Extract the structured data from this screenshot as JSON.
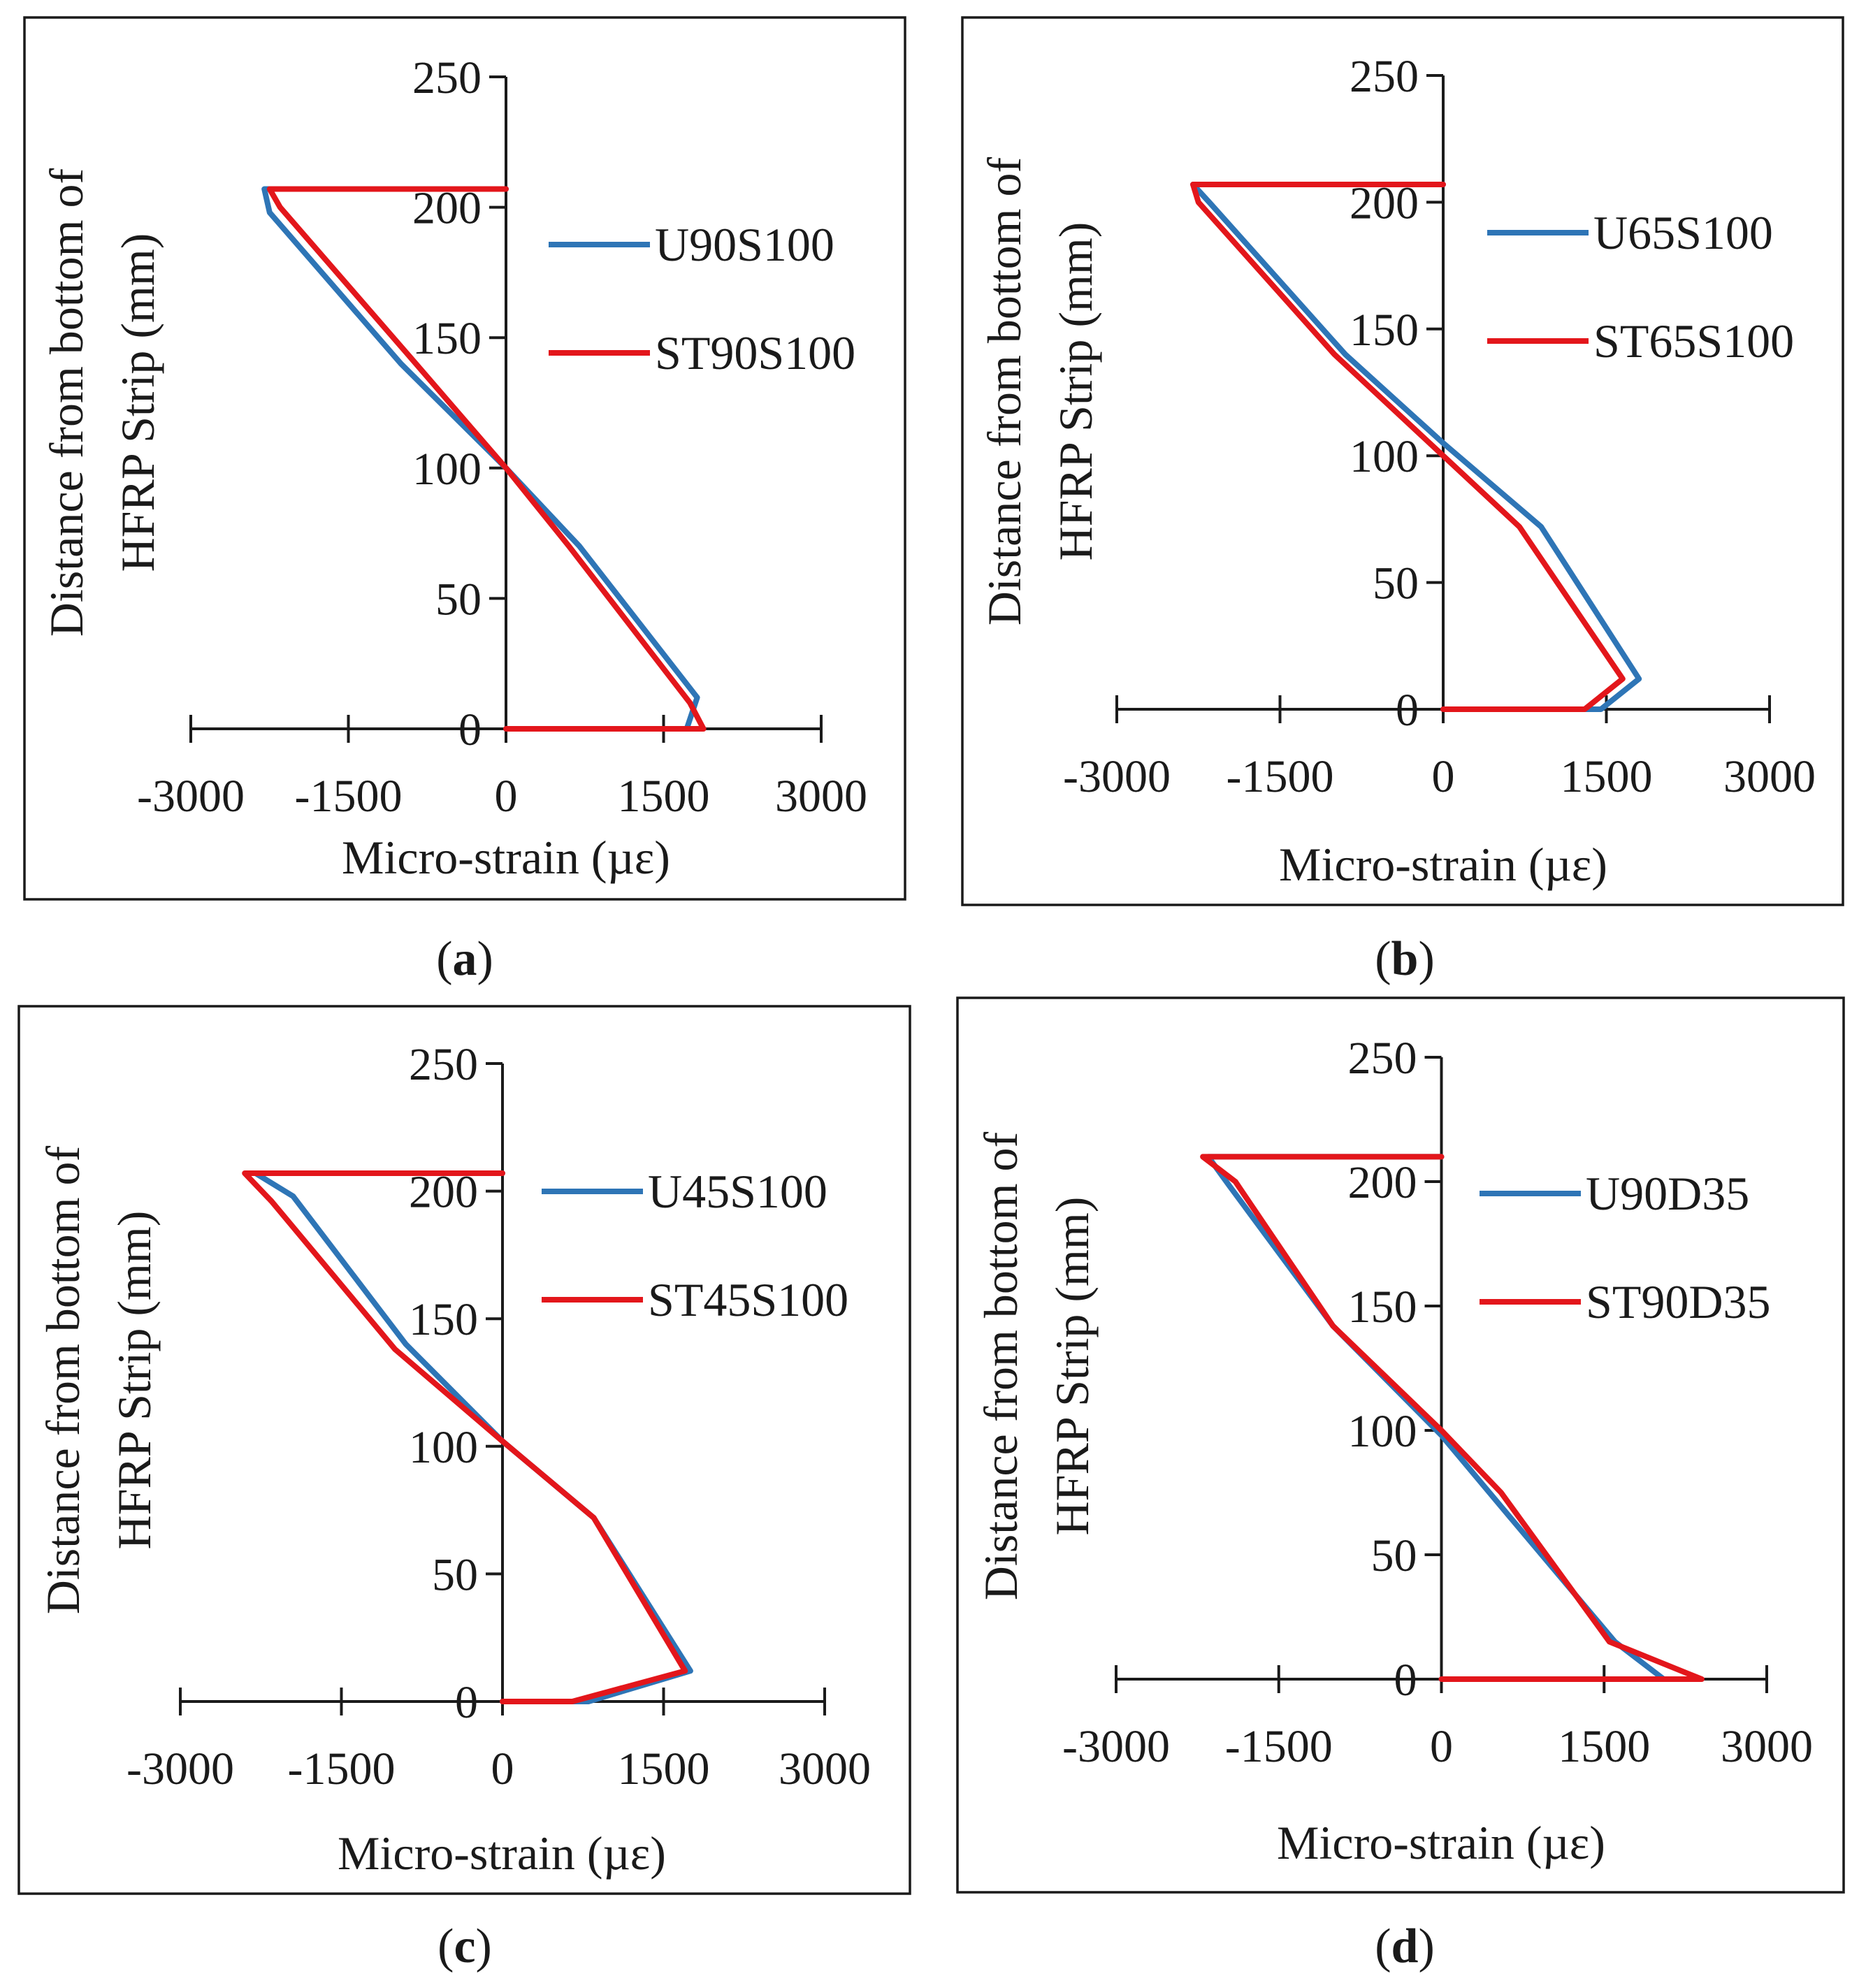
{
  "colors": {
    "blue": "#2E75B6",
    "red": "#E3161B",
    "axis": "#1a1a1a"
  },
  "chart_data": [
    {
      "type": "line",
      "panel": "a",
      "caption_letter": "a",
      "xlabel": "Micro-strain (µε)",
      "ylabel_lines": [
        "Distance from bottom of",
        "HFRP Strip (mm)"
      ],
      "xlim": [
        -3000,
        3000
      ],
      "ylim": [
        0,
        250
      ],
      "xticks": [
        -3000,
        -1500,
        0,
        1500,
        3000
      ],
      "xtick_labels": [
        "-3000",
        "-1500",
        "0",
        "1500",
        "3000"
      ],
      "yticks": [
        0,
        50,
        100,
        150,
        200,
        250
      ],
      "ytick_labels": [
        "0",
        "50",
        "100",
        "150",
        "200",
        "250"
      ],
      "legend": "right",
      "series": [
        {
          "name": "U90S100",
          "color": "#2E75B6",
          "x": [
            0,
            1720,
            1820,
            700,
            0,
            -1000,
            -2250,
            -2300,
            0
          ],
          "y": [
            0,
            0,
            12,
            70,
            100,
            140,
            198,
            207,
            207
          ]
        },
        {
          "name": "ST90S100",
          "color": "#E3161B",
          "x": [
            0,
            1880,
            1750,
            600,
            0,
            -900,
            -2150,
            -2250,
            0
          ],
          "y": [
            0,
            0,
            10,
            70,
            100,
            142,
            200,
            207,
            207
          ]
        }
      ]
    },
    {
      "type": "line",
      "panel": "b",
      "caption_letter": "b",
      "xlabel": "Micro-strain (µε)",
      "ylabel_lines": [
        "Distance from bottom of",
        "HFRP Strip (mm)"
      ],
      "xlim": [
        -3000,
        3000
      ],
      "ylim": [
        0,
        250
      ],
      "xticks": [
        -3000,
        -1500,
        0,
        1500,
        3000
      ],
      "xtick_labels": [
        "-3000",
        "-1500",
        "0",
        "1500",
        "3000"
      ],
      "yticks": [
        0,
        50,
        100,
        150,
        200,
        250
      ],
      "ytick_labels": [
        "0",
        "50",
        "100",
        "150",
        "200",
        "250"
      ],
      "legend": "right",
      "series": [
        {
          "name": "U65S100",
          "color": "#2E75B6",
          "x": [
            0,
            1450,
            1800,
            900,
            0,
            -900,
            -2150,
            -2300,
            0
          ],
          "y": [
            0,
            0,
            12,
            72,
            105,
            140,
            200,
            207,
            207
          ]
        },
        {
          "name": "ST65S100",
          "color": "#E3161B",
          "x": [
            0,
            1300,
            1650,
            700,
            0,
            -1000,
            -2250,
            -2300,
            0
          ],
          "y": [
            0,
            0,
            12,
            72,
            100,
            140,
            200,
            207,
            207
          ]
        }
      ]
    },
    {
      "type": "line",
      "panel": "c",
      "caption_letter": "c",
      "xlabel": "Micro-strain (µε)",
      "ylabel_lines": [
        "Distance from bottom of",
        "HFRP Strip (mm)"
      ],
      "xlim": [
        -3000,
        3000
      ],
      "ylim": [
        0,
        250
      ],
      "xticks": [
        -3000,
        -1500,
        0,
        1500,
        3000
      ],
      "xtick_labels": [
        "-3000",
        "-1500",
        "0",
        "1500",
        "3000"
      ],
      "yticks": [
        0,
        50,
        100,
        150,
        200,
        250
      ],
      "ytick_labels": [
        "0",
        "50",
        "100",
        "150",
        "200",
        "250"
      ],
      "legend": "right",
      "series": [
        {
          "name": "U45S100",
          "color": "#2E75B6",
          "x": [
            0,
            800,
            1750,
            850,
            0,
            -900,
            -1950,
            -2300,
            0
          ],
          "y": [
            0,
            0,
            12,
            72,
            102,
            140,
            198,
            207,
            207
          ]
        },
        {
          "name": "ST45S100",
          "color": "#E3161B",
          "x": [
            0,
            650,
            1700,
            850,
            0,
            -1000,
            -2150,
            -2400,
            0
          ],
          "y": [
            0,
            0,
            12,
            72,
            102,
            138,
            196,
            207,
            207
          ]
        }
      ]
    },
    {
      "type": "line",
      "panel": "d",
      "caption_letter": "d",
      "xlabel": "Micro-strain (µε)",
      "ylabel_lines": [
        "Distance from bottom of",
        "HFRP Strip (mm)"
      ],
      "xlim": [
        -3000,
        3000
      ],
      "ylim": [
        0,
        250
      ],
      "xticks": [
        -3000,
        -1500,
        0,
        1500,
        3000
      ],
      "xtick_labels": [
        "-3000",
        "-1500",
        "0",
        "1500",
        "3000"
      ],
      "yticks": [
        0,
        50,
        100,
        150,
        200,
        250
      ],
      "ytick_labels": [
        "0",
        "50",
        "100",
        "150",
        "200",
        "250"
      ],
      "legend": "right",
      "series": [
        {
          "name": "U90D35",
          "color": "#2E75B6",
          "x": [
            0,
            2050,
            1600,
            500,
            0,
            -1000,
            -1950,
            -2150,
            0
          ],
          "y": [
            0,
            0,
            15,
            72,
            98,
            142,
            198,
            210,
            210
          ]
        },
        {
          "name": "ST90D35",
          "color": "#E3161B",
          "x": [
            0,
            2400,
            1550,
            550,
            0,
            -1000,
            -1900,
            -2200,
            0
          ],
          "y": [
            0,
            0,
            15,
            75,
            100,
            142,
            200,
            210,
            210
          ]
        }
      ]
    }
  ]
}
